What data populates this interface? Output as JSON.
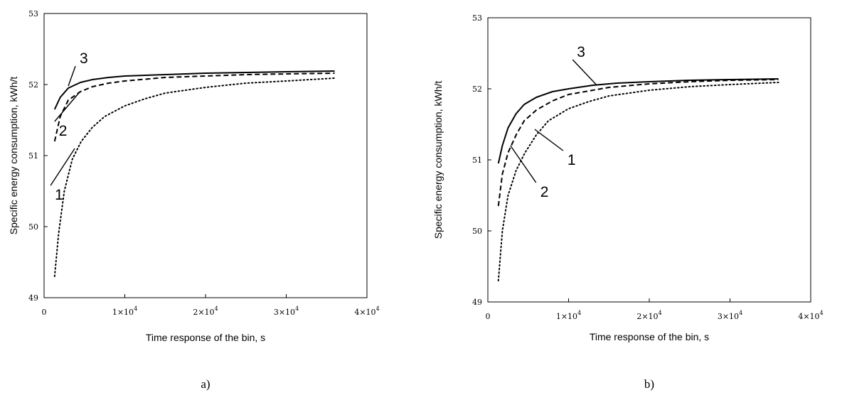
{
  "chart_data": [
    {
      "type": "line",
      "panel_label": "a)",
      "xlabel": "Time response of the bin, s",
      "ylabel": "Specific energy consumption, kWh/t",
      "xlim": [
        0,
        40000
      ],
      "ylim": [
        49,
        53
      ],
      "x_ticks": [
        {
          "value": 0,
          "label": "0"
        },
        {
          "value": 10000,
          "label": "1×10"
        },
        {
          "value": 20000,
          "label": "2×10"
        },
        {
          "value": 30000,
          "label": "3×10"
        },
        {
          "value": 40000,
          "label": "4×10"
        }
      ],
      "x_tick_exponent": "4",
      "y_ticks": [
        {
          "value": 49,
          "label": "49"
        },
        {
          "value": 50,
          "label": "50"
        },
        {
          "value": 51,
          "label": "51"
        },
        {
          "value": 52,
          "label": "52"
        },
        {
          "value": 53,
          "label": "53"
        }
      ],
      "grid": false,
      "series": [
        {
          "label": "1",
          "style": "dotted",
          "x": [
            1300,
            1800,
            2500,
            3500,
            4600,
            6000,
            7500,
            10000,
            12500,
            15000,
            20000,
            25000,
            30000,
            36000
          ],
          "y": [
            49.3,
            49.9,
            50.5,
            50.95,
            51.2,
            51.4,
            51.55,
            51.7,
            51.8,
            51.88,
            51.96,
            52.02,
            52.05,
            52.09
          ]
        },
        {
          "label": "2",
          "style": "dashed",
          "x": [
            1300,
            2000,
            3000,
            4500,
            6000,
            8000,
            10000,
            15000,
            20000,
            25000,
            30000,
            36000
          ],
          "y": [
            51.2,
            51.55,
            51.78,
            51.9,
            51.97,
            52.02,
            52.05,
            52.1,
            52.12,
            52.14,
            52.15,
            52.16
          ]
        },
        {
          "label": "3",
          "style": "solid",
          "x": [
            1300,
            2000,
            3000,
            4500,
            6000,
            8000,
            10000,
            15000,
            20000,
            25000,
            30000,
            36000
          ],
          "y": [
            51.65,
            51.82,
            51.95,
            52.03,
            52.07,
            52.1,
            52.12,
            52.14,
            52.16,
            52.17,
            52.18,
            52.19
          ]
        }
      ],
      "annotations": [
        {
          "text": "3",
          "series": "3",
          "x": 3000,
          "y": 51.98
        },
        {
          "text": "2",
          "series": "2",
          "x": 4300,
          "y": 51.88
        },
        {
          "text": "1",
          "series": "1",
          "x": 3800,
          "y": 51.1
        }
      ]
    },
    {
      "type": "line",
      "panel_label": "b)",
      "xlabel": "Time response of the bin, s",
      "ylabel": "Specific energy consumption, kWh/t",
      "xlim": [
        0,
        40000
      ],
      "ylim": [
        49,
        53
      ],
      "x_ticks": [
        {
          "value": 0,
          "label": "0"
        },
        {
          "value": 10000,
          "label": "1×10"
        },
        {
          "value": 20000,
          "label": "2×10"
        },
        {
          "value": 30000,
          "label": "3×10"
        },
        {
          "value": 40000,
          "label": "4×10"
        }
      ],
      "x_tick_exponent": "4",
      "y_ticks": [
        {
          "value": 49,
          "label": "49"
        },
        {
          "value": 50,
          "label": "50"
        },
        {
          "value": 51,
          "label": "51"
        },
        {
          "value": 52,
          "label": "52"
        },
        {
          "value": 53,
          "label": "53"
        }
      ],
      "grid": false,
      "series": [
        {
          "label": "1",
          "style": "dotted",
          "x": [
            1300,
            1800,
            2500,
            3500,
            4600,
            6000,
            7500,
            10000,
            12500,
            15000,
            20000,
            25000,
            30000,
            36000
          ],
          "y": [
            49.3,
            50.0,
            50.5,
            50.85,
            51.1,
            51.35,
            51.55,
            51.72,
            51.82,
            51.9,
            51.98,
            52.03,
            52.06,
            52.09
          ]
        },
        {
          "label": "2",
          "style": "dashed",
          "x": [
            1300,
            1800,
            2500,
            3500,
            4500,
            6000,
            8000,
            10000,
            15000,
            20000,
            25000,
            30000,
            36000
          ],
          "y": [
            50.35,
            50.8,
            51.1,
            51.35,
            51.55,
            51.7,
            51.83,
            51.92,
            52.02,
            52.07,
            52.1,
            52.12,
            52.13
          ]
        },
        {
          "label": "3",
          "style": "solid",
          "x": [
            1300,
            1800,
            2500,
            3500,
            4500,
            6000,
            8000,
            10000,
            13000,
            16000,
            20000,
            25000,
            30000,
            36000
          ],
          "y": [
            50.95,
            51.2,
            51.45,
            51.65,
            51.78,
            51.88,
            51.96,
            52.0,
            52.05,
            52.08,
            52.1,
            52.12,
            52.13,
            52.14
          ]
        }
      ],
      "annotations": [
        {
          "text": "3",
          "series": "3",
          "x": 13500,
          "y": 52.05
        },
        {
          "text": "1",
          "series": "1",
          "x": 5800,
          "y": 51.43
        },
        {
          "text": "2",
          "series": "2",
          "x": 2800,
          "y": 51.2
        }
      ]
    }
  ]
}
